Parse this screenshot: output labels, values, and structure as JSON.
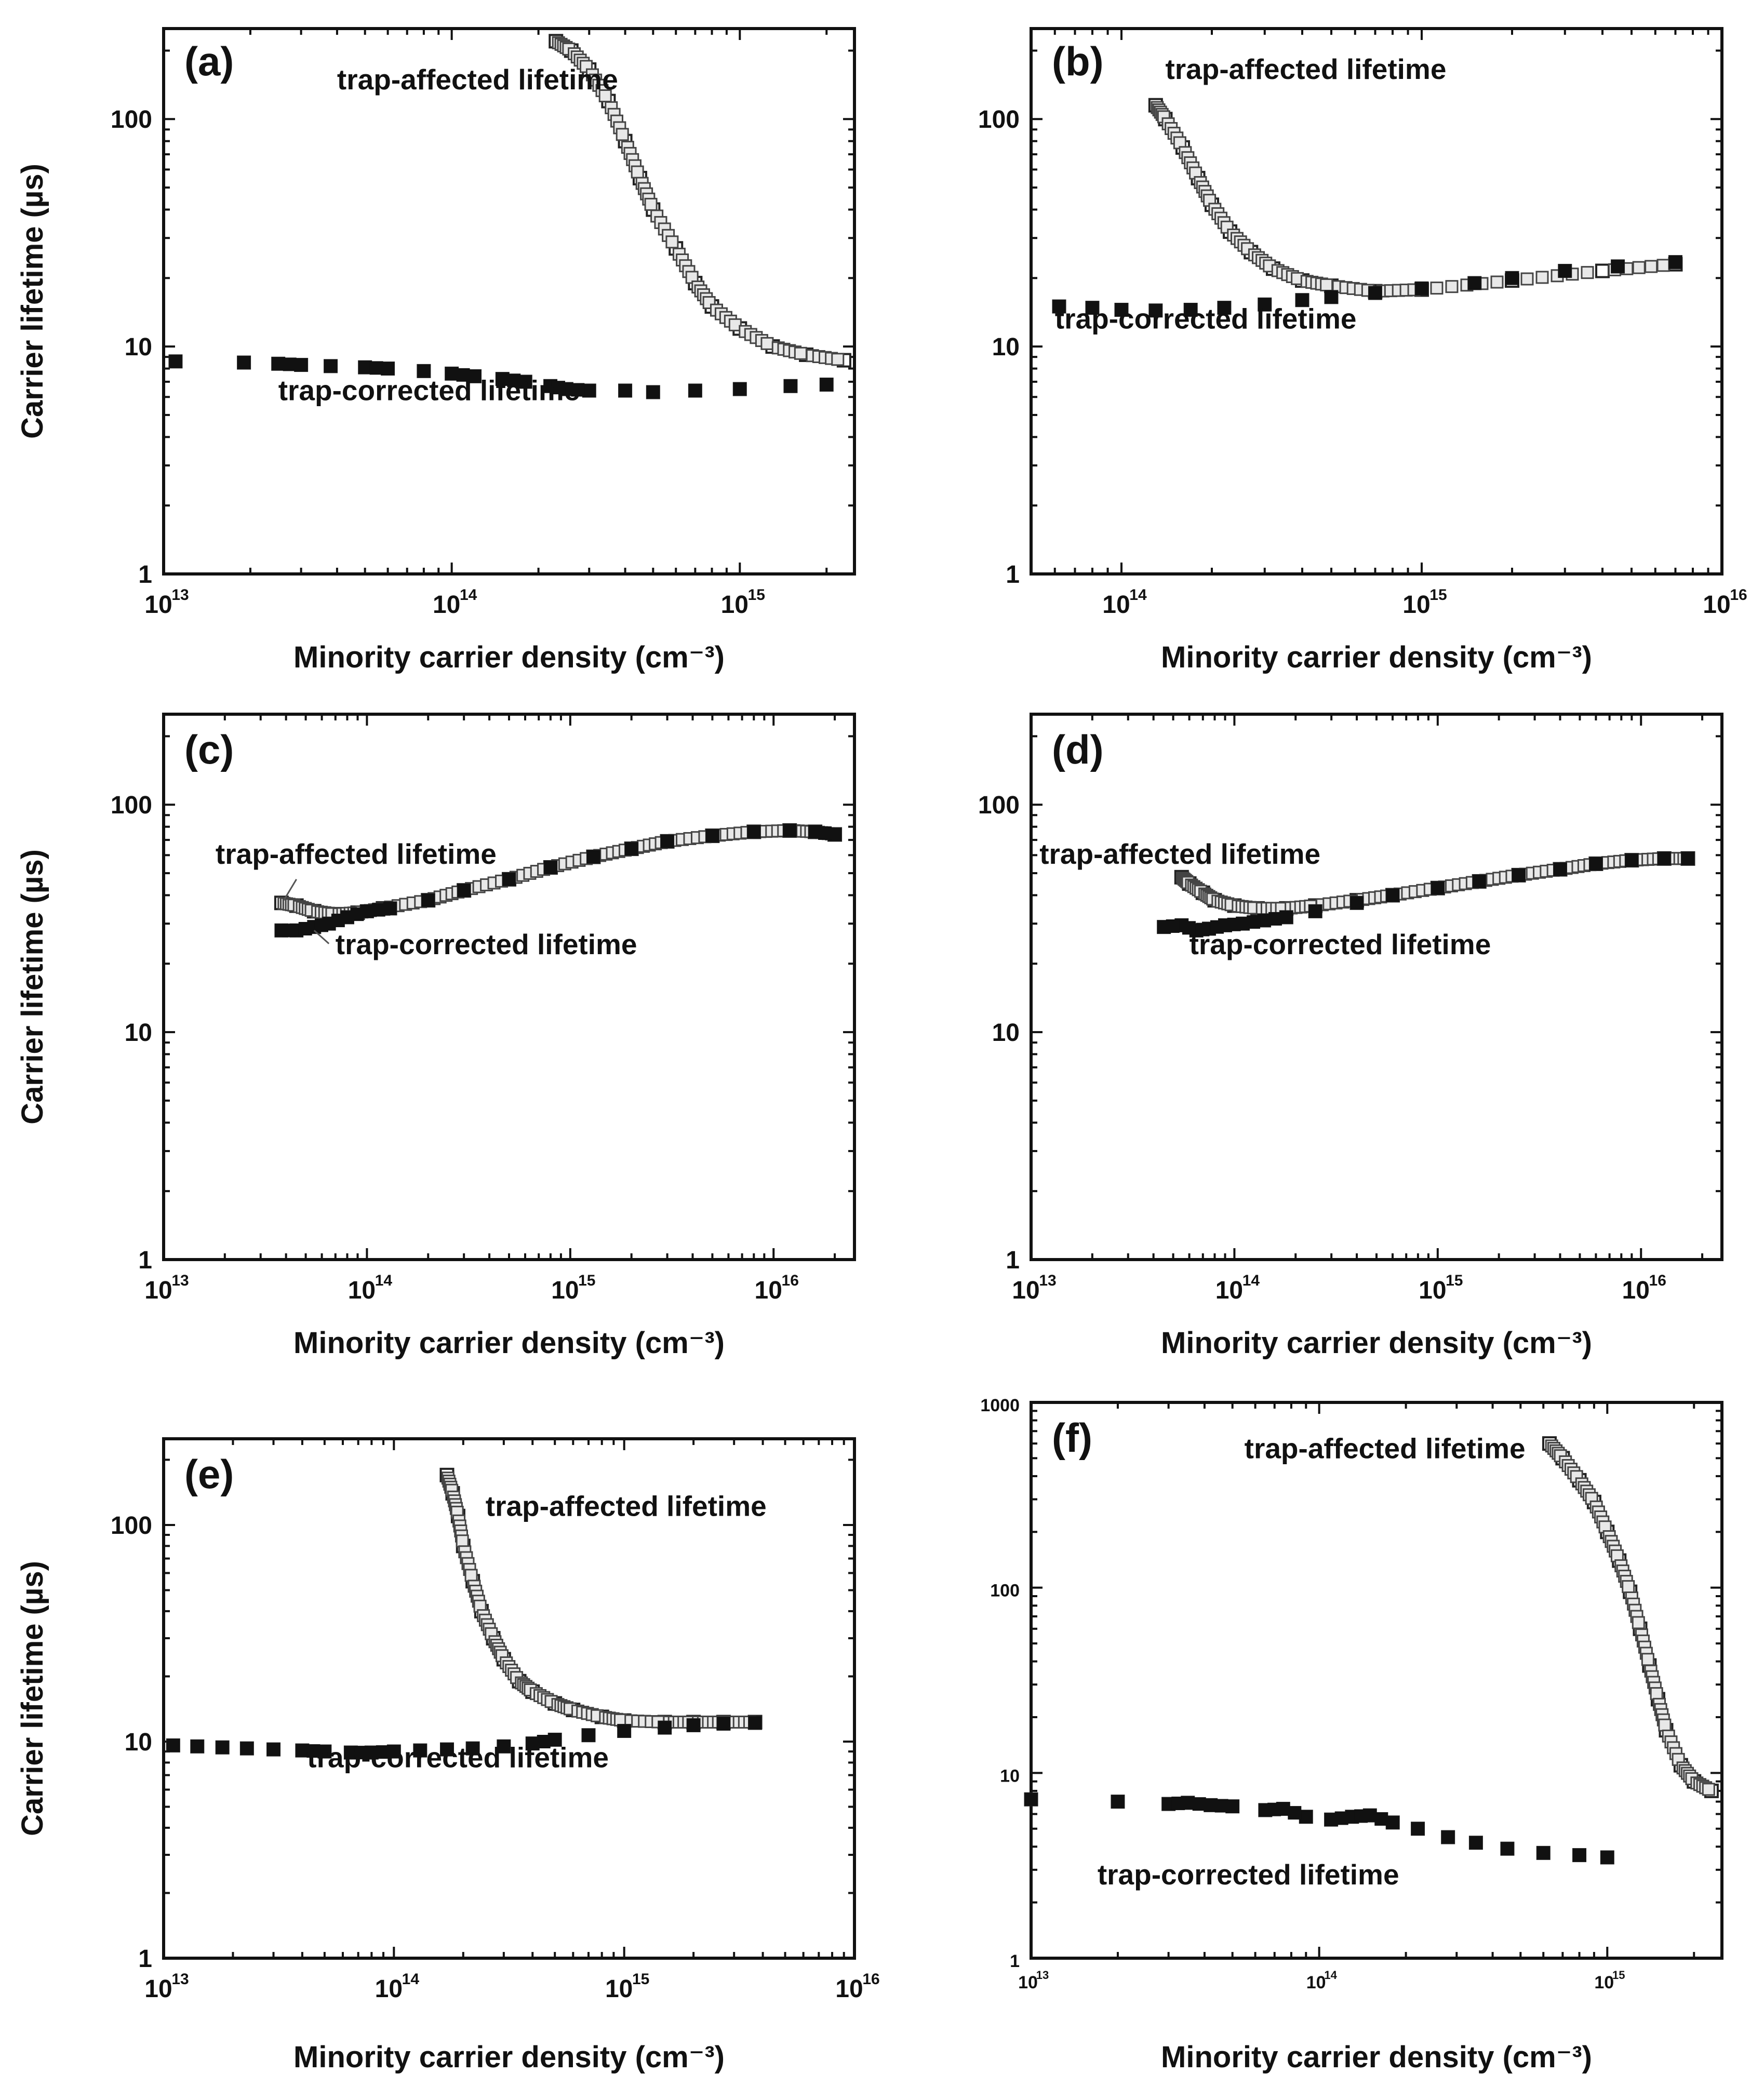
{
  "figure": {
    "shared_xlabel": "Minority carrier density (cm⁻³)",
    "shared_ylabel": "Carrier lifetime (µs)"
  },
  "chart_data": [
    {
      "id": "a",
      "type": "scatter",
      "panel_label": "(a)",
      "xscale": "log",
      "yscale": "log",
      "xlim": [
        10000000000000.0,
        2500000000000000.0
      ],
      "ylim": [
        1,
        250
      ],
      "x_ticks": [
        {
          "value": 10000000000000.0,
          "label": "10"
        },
        {
          "value": 100000000000000.0,
          "label": "10"
        },
        {
          "value": 1000000000000000.0,
          "label": "10"
        }
      ],
      "x_tick_exponents": [
        "13",
        "14",
        "15"
      ],
      "y_ticks": [
        {
          "value": 1,
          "label": "1"
        },
        {
          "value": 10,
          "label": "10"
        },
        {
          "value": 100,
          "label": "100"
        }
      ],
      "xlabel": "Minority carrier density (cm⁻³)",
      "ylabel": "Carrier lifetime (µs)",
      "series": [
        {
          "name": "trap-affected lifetime",
          "marker": "open-square",
          "x": [
            230000000000000.0,
            260000000000000.0,
            300000000000000.0,
            350000000000000.0,
            400000000000000.0,
            450000000000000.0,
            500000000000000.0,
            600000000000000.0,
            700000000000000.0,
            800000000000000.0,
            1000000000000000.0,
            1300000000000000.0,
            1700000000000000.0,
            2300000000000000.0
          ],
          "y": [
            220,
            200,
            165,
            120,
            80,
            55,
            40,
            27,
            19,
            15,
            12,
            10,
            9.2,
            8.7
          ]
        },
        {
          "name": "trap-corrected lifetime",
          "marker": "filled-square",
          "x": [
            11000000000000.0,
            19000000000000.0,
            25000000000000.0,
            30000000000000.0,
            38000000000000.0,
            50000000000000.0,
            60000000000000.0,
            80000000000000.0,
            100000000000000.0,
            120000000000000.0,
            150000000000000.0,
            180000000000000.0,
            220000000000000.0,
            250000000000000.0,
            300000000000000.0,
            400000000000000.0,
            500000000000000.0,
            700000000000000.0,
            1000000000000000.0,
            1500000000000000.0,
            2000000000000000.0
          ],
          "y": [
            8.6,
            8.5,
            8.4,
            8.3,
            8.2,
            8.1,
            8.0,
            7.8,
            7.6,
            7.4,
            7.2,
            7.0,
            6.7,
            6.5,
            6.4,
            6.4,
            6.3,
            6.4,
            6.5,
            6.7,
            6.8
          ]
        }
      ],
      "annotations": [
        {
          "text": "trap-affected lifetime",
          "x": 40000000000000.0,
          "y": 135
        },
        {
          "text": "trap-corrected lifetime",
          "x": 25000000000000.0,
          "y": 5.8
        }
      ]
    },
    {
      "id": "b",
      "type": "scatter",
      "panel_label": "(b)",
      "xscale": "log",
      "yscale": "log",
      "xlim": [
        50000000000000.0,
        1e+16
      ],
      "ylim": [
        1,
        250
      ],
      "x_ticks": [
        {
          "value": 100000000000000.0,
          "label": "10"
        },
        {
          "value": 1000000000000000.0,
          "label": "10"
        },
        {
          "value": 1e+16,
          "label": "10"
        }
      ],
      "x_tick_exponents": [
        "14",
        "15",
        "16"
      ],
      "y_ticks": [
        {
          "value": 1,
          "label": "1"
        },
        {
          "value": 10,
          "label": "10"
        },
        {
          "value": 100,
          "label": "100"
        }
      ],
      "xlabel": "Minority carrier density (cm⁻³)",
      "ylabel": "",
      "series": [
        {
          "name": "trap-affected lifetime",
          "marker": "open-square",
          "x": [
            130000000000000.0,
            140000000000000.0,
            160000000000000.0,
            180000000000000.0,
            200000000000000.0,
            230000000000000.0,
            270000000000000.0,
            320000000000000.0,
            400000000000000.0,
            500000000000000.0,
            700000000000000.0,
            1000000000000000.0,
            2000000000000000.0,
            4000000000000000.0,
            7000000000000000.0
          ],
          "y": [
            115,
            100,
            75,
            55,
            42,
            32,
            26,
            22,
            19.5,
            18.5,
            17.5,
            17.8,
            19.5,
            21.5,
            23
          ]
        },
        {
          "name": "trap-corrected lifetime",
          "marker": "filled-square",
          "x": [
            62000000000000.0,
            80000000000000.0,
            100000000000000.0,
            130000000000000.0,
            170000000000000.0,
            220000000000000.0,
            300000000000000.0,
            400000000000000.0,
            500000000000000.0,
            700000000000000.0,
            1000000000000000.0,
            1500000000000000.0,
            2000000000000000.0,
            3000000000000000.0,
            4500000000000000.0,
            7000000000000000.0
          ],
          "y": [
            15,
            14.8,
            14.5,
            14.4,
            14.5,
            14.8,
            15.3,
            16,
            16.5,
            17.2,
            18,
            19,
            20,
            21.5,
            22.5,
            23.5
          ]
        }
      ],
      "annotations": [
        {
          "text": "trap-affected lifetime",
          "x": 140000000000000.0,
          "y": 150
        },
        {
          "text": "trap-corrected lifetime",
          "x": 60000000000000.0,
          "y": 12
        }
      ]
    },
    {
      "id": "c",
      "type": "scatter",
      "panel_label": "(c)",
      "xscale": "log",
      "yscale": "log",
      "xlim": [
        10000000000000.0,
        2.5e+16
      ],
      "ylim": [
        1,
        250
      ],
      "x_ticks": [
        {
          "value": 10000000000000.0,
          "label": "10"
        },
        {
          "value": 100000000000000.0,
          "label": "10"
        },
        {
          "value": 1000000000000000.0,
          "label": "10"
        },
        {
          "value": 1e+16,
          "label": "10"
        }
      ],
      "x_tick_exponents": [
        "13",
        "14",
        "15",
        "16"
      ],
      "y_ticks": [
        {
          "value": 1,
          "label": "1"
        },
        {
          "value": 10,
          "label": "10"
        },
        {
          "value": 100,
          "label": "100"
        }
      ],
      "xlabel": "Minority carrier density (cm⁻³)",
      "ylabel": "Carrier lifetime (µs)",
      "series": [
        {
          "name": "trap-affected lifetime",
          "marker": "open-square",
          "x": [
            38000000000000.0,
            45000000000000.0,
            55000000000000.0,
            70000000000000.0,
            90000000000000.0,
            120000000000000.0,
            200000000000000.0,
            300000000000000.0,
            500000000000000.0,
            800000000000000.0,
            1300000000000000.0,
            2000000000000000.0,
            3000000000000000.0,
            5000000000000000.0,
            8000000000000000.0,
            1.2e+16,
            1.6e+16,
            2e+16
          ],
          "y": [
            37,
            36,
            34,
            33,
            33.5,
            35,
            38,
            42,
            47,
            53,
            59,
            64,
            69,
            73,
            76,
            77,
            76,
            74
          ]
        },
        {
          "name": "trap-corrected lifetime",
          "marker": "filled-square",
          "x": [
            38000000000000.0,
            45000000000000.0,
            55000000000000.0,
            65000000000000.0,
            80000000000000.0,
            100000000000000.0,
            130000000000000.0,
            200000000000000.0,
            300000000000000.0,
            500000000000000.0,
            800000000000000.0,
            1300000000000000.0,
            2000000000000000.0,
            3000000000000000.0,
            5000000000000000.0,
            8000000000000000.0,
            1.2e+16,
            1.6e+16,
            2e+16
          ],
          "y": [
            28,
            28,
            29,
            30,
            32,
            34,
            35,
            38,
            42,
            47,
            53,
            59,
            64,
            69,
            73,
            76,
            77,
            76,
            74
          ]
        }
      ],
      "annotations": [
        {
          "text": "trap-affected lifetime",
          "x": 18000000000000.0,
          "y": 55
        },
        {
          "text": "trap-corrected lifetime",
          "x": 70000000000000.0,
          "y": 22
        }
      ]
    },
    {
      "id": "d",
      "type": "scatter",
      "panel_label": "(d)",
      "xscale": "log",
      "yscale": "log",
      "xlim": [
        10000000000000.0,
        2.5e+16
      ],
      "ylim": [
        1,
        250
      ],
      "x_ticks": [
        {
          "value": 10000000000000.0,
          "label": "10"
        },
        {
          "value": 100000000000000.0,
          "label": "10"
        },
        {
          "value": 1000000000000000.0,
          "label": "10"
        },
        {
          "value": 1e+16,
          "label": "10"
        }
      ],
      "x_tick_exponents": [
        "13",
        "14",
        "15",
        "16"
      ],
      "y_ticks": [
        {
          "value": 1,
          "label": "1"
        },
        {
          "value": 10,
          "label": "10"
        },
        {
          "value": 100,
          "label": "100"
        }
      ],
      "xlabel": "Minority carrier density (cm⁻³)",
      "ylabel": "",
      "series": [
        {
          "name": "trap-affected lifetime",
          "marker": "open-square",
          "x": [
            55000000000000.0,
            60000000000000.0,
            70000000000000.0,
            80000000000000.0,
            100000000000000.0,
            130000000000000.0,
            180000000000000.0,
            250000000000000.0,
            400000000000000.0,
            600000000000000.0,
            1000000000000000.0,
            1600000000000000.0,
            2500000000000000.0,
            4000000000000000.0,
            6000000000000000.0,
            9000000000000000.0,
            1.3e+16,
            1.7e+16
          ],
          "y": [
            48,
            45,
            41,
            38,
            36,
            35,
            35,
            36,
            38,
            40,
            43,
            46,
            49,
            52,
            55,
            57,
            58,
            58
          ]
        },
        {
          "name": "trap-corrected lifetime",
          "marker": "filled-square",
          "x": [
            45000000000000.0,
            55000000000000.0,
            65000000000000.0,
            75000000000000.0,
            90000000000000.0,
            110000000000000.0,
            140000000000000.0,
            180000000000000.0,
            250000000000000.0,
            400000000000000.0,
            600000000000000.0,
            1000000000000000.0,
            1600000000000000.0,
            2500000000000000.0,
            4000000000000000.0,
            6000000000000000.0,
            9000000000000000.0,
            1.3e+16,
            1.7e+16
          ],
          "y": [
            29,
            29.5,
            28,
            28.5,
            29.5,
            30,
            31,
            32,
            34,
            37,
            40,
            43,
            46,
            49,
            52,
            55,
            57,
            58,
            58
          ]
        }
      ],
      "annotations": [
        {
          "text": "trap-affected lifetime",
          "x": 11000000000000.0,
          "y": 55
        },
        {
          "text": "trap-corrected lifetime",
          "x": 60000000000000.0,
          "y": 22
        }
      ]
    },
    {
      "id": "e",
      "type": "scatter",
      "panel_label": "(e)",
      "xscale": "log",
      "yscale": "log",
      "xlim": [
        10000000000000.0,
        1e+16
      ],
      "ylim": [
        1,
        250
      ],
      "x_ticks": [
        {
          "value": 10000000000000.0,
          "label": "10"
        },
        {
          "value": 100000000000000.0,
          "label": "10"
        },
        {
          "value": 1000000000000000.0,
          "label": "10"
        },
        {
          "value": 1e+16,
          "label": "10"
        }
      ],
      "x_tick_exponents": [
        "13",
        "14",
        "15",
        "16"
      ],
      "y_ticks": [
        {
          "value": 1,
          "label": "1"
        },
        {
          "value": 10,
          "label": "10"
        },
        {
          "value": 100,
          "label": "100"
        }
      ],
      "xlabel": "Minority carrier density (cm⁻³)",
      "ylabel": "Carrier lifetime (µs)",
      "series": [
        {
          "name": "trap-affected lifetime",
          "marker": "open-square",
          "x": [
            170000000000000.0,
            180000000000000.0,
            190000000000000.0,
            200000000000000.0,
            220000000000000.0,
            240000000000000.0,
            270000000000000.0,
            300000000000000.0,
            350000000000000.0,
            400000000000000.0,
            500000000000000.0,
            600000000000000.0,
            800000000000000.0,
            1000000000000000.0,
            1500000000000000.0,
            2000000000000000.0,
            2700000000000000.0,
            3700000000000000.0
          ],
          "y": [
            170,
            140,
            110,
            80,
            55,
            40,
            30,
            24,
            19,
            17,
            15,
            14,
            13,
            12.5,
            12.3,
            12.3,
            12.3,
            12.3
          ]
        },
        {
          "name": "trap-corrected lifetime",
          "marker": "filled-square",
          "x": [
            11000000000000.0,
            14000000000000.0,
            18000000000000.0,
            23000000000000.0,
            30000000000000.0,
            40000000000000.0,
            50000000000000.0,
            65000000000000.0,
            80000000000000.0,
            100000000000000.0,
            130000000000000.0,
            170000000000000.0,
            220000000000000.0,
            300000000000000.0,
            400000000000000.0,
            500000000000000.0,
            700000000000000.0,
            1000000000000000.0,
            1500000000000000.0,
            2000000000000000.0,
            2700000000000000.0,
            3700000000000000.0
          ],
          "y": [
            9.6,
            9.5,
            9.4,
            9.3,
            9.2,
            9.1,
            9.0,
            8.9,
            8.9,
            9.0,
            9.1,
            9.2,
            9.3,
            9.5,
            9.8,
            10.2,
            10.7,
            11.2,
            11.6,
            11.9,
            12.1,
            12.2
          ]
        }
      ],
      "annotations": [
        {
          "text": "trap-affected lifetime",
          "x": 250000000000000.0,
          "y": 110
        },
        {
          "text": "trap-corrected lifetime",
          "x": 42000000000000.0,
          "y": 7.6
        }
      ]
    },
    {
      "id": "f",
      "type": "scatter",
      "panel_label": "(f)",
      "xscale": "log",
      "yscale": "log",
      "xlim": [
        10000000000000.0,
        2500000000000000.0
      ],
      "ylim": [
        1,
        1000
      ],
      "x_ticks": [
        {
          "value": 10000000000000.0,
          "label": "10"
        },
        {
          "value": 100000000000000.0,
          "label": "10"
        },
        {
          "value": 1000000000000000.0,
          "label": "10"
        }
      ],
      "x_tick_exponents": [
        "13",
        "14",
        "15"
      ],
      "y_ticks": [
        {
          "value": 1,
          "label": "1"
        },
        {
          "value": 10,
          "label": "10"
        },
        {
          "value": 100,
          "label": "100"
        },
        {
          "value": 1000,
          "label": "1000"
        }
      ],
      "xlabel": "Minority carrier density (cm⁻³)",
      "ylabel": "",
      "series": [
        {
          "name": "trap-affected lifetime",
          "marker": "open-square",
          "x": [
            630000000000000.0,
            700000000000000.0,
            800000000000000.0,
            900000000000000.0,
            1000000000000000.0,
            1100000000000000.0,
            1200000000000000.0,
            1300000000000000.0,
            1400000000000000.0,
            1500000000000000.0,
            1600000000000000.0,
            1800000000000000.0,
            2000000000000000.0,
            2300000000000000.0
          ],
          "y": [
            600,
            500,
            380,
            290,
            200,
            140,
            95,
            60,
            38,
            25,
            17,
            11,
            9,
            8
          ]
        },
        {
          "name": "trap-corrected lifetime",
          "marker": "filled-square",
          "x": [
            10000000000000.0,
            20000000000000.0,
            30000000000000.0,
            35000000000000.0,
            42000000000000.0,
            50000000000000.0,
            65000000000000.0,
            75000000000000.0,
            90000000000000.0,
            110000000000000.0,
            130000000000000.0,
            150000000000000.0,
            180000000000000.0,
            220000000000000.0,
            280000000000000.0,
            350000000000000.0,
            450000000000000.0,
            600000000000000.0,
            800000000000000.0,
            1000000000000000.0
          ],
          "y": [
            7.2,
            7.0,
            6.8,
            6.9,
            6.7,
            6.6,
            6.3,
            6.4,
            5.8,
            5.6,
            5.8,
            5.9,
            5.4,
            5.0,
            4.5,
            4.2,
            3.9,
            3.7,
            3.6,
            3.5
          ]
        }
      ],
      "annotations": [
        {
          "text": "trap-affected lifetime",
          "x": 55000000000000.0,
          "y": 500
        },
        {
          "text": "trap-corrected lifetime",
          "x": 17000000000000.0,
          "y": 2.5
        }
      ]
    }
  ]
}
